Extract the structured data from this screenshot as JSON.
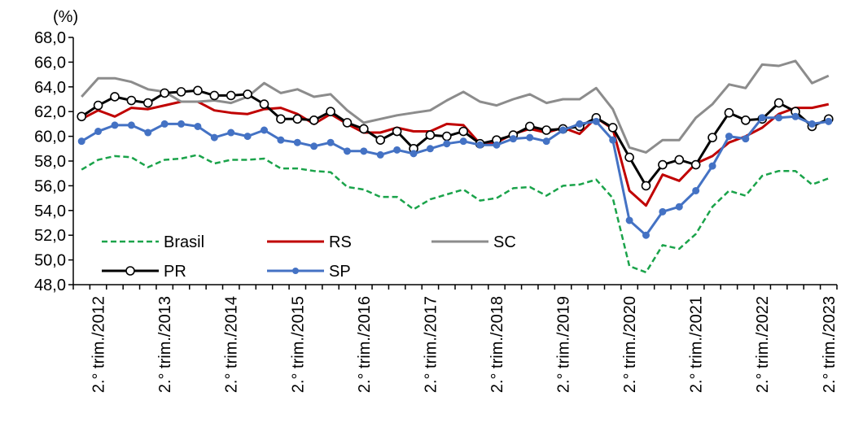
{
  "chart_data": {
    "type": "line",
    "unit_label": "(%)",
    "ylim": [
      48,
      68
    ],
    "y_ticks": [
      "48,0",
      "50,0",
      "52,0",
      "54,0",
      "56,0",
      "58,0",
      "60,0",
      "62,0",
      "64,0",
      "66,0",
      "68,0"
    ],
    "y_tick_values": [
      48,
      50,
      52,
      54,
      56,
      58,
      60,
      62,
      64,
      66,
      68
    ],
    "x_tick_labels": [
      "2.° trim./2012",
      "2.° trim./2013",
      "2.° trim./2014",
      "2.° trim./2015",
      "2.° trim./2016",
      "2.° trim./2017",
      "2.° trim./2018",
      "2.° trim./2019",
      "2.° trim./2020",
      "2.° trim./2021",
      "2.° trim./2022",
      "2.° trim./2023"
    ],
    "x_labeled_quarter_index": [
      1,
      5,
      9,
      13,
      17,
      21,
      25,
      29,
      33,
      37,
      41,
      45
    ],
    "quarters_count": 46,
    "grid": false,
    "legend_placement": "bottom-left, inside plot",
    "series": [
      {
        "name": "Brasil",
        "color": "#1aa34a",
        "style": "dashed",
        "marker": "none",
        "values": [
          57.3,
          58.1,
          58.4,
          58.3,
          57.5,
          58.1,
          58.2,
          58.5,
          57.8,
          58.1,
          58.1,
          58.2,
          57.4,
          57.4,
          57.2,
          57.1,
          55.9,
          55.7,
          55.1,
          55.1,
          54.1,
          54.9,
          55.3,
          55.7,
          54.8,
          55.0,
          55.8,
          55.9,
          55.2,
          56.0,
          56.1,
          56.5,
          55.0,
          49.5,
          49.0,
          51.2,
          50.9,
          52.1,
          54.3,
          55.6,
          55.2,
          56.8,
          57.2,
          57.2,
          56.1,
          56.6
        ]
      },
      {
        "name": "RS",
        "color": "#c00000",
        "style": "solid",
        "marker": "none",
        "values": [
          61.4,
          62.1,
          61.6,
          62.3,
          62.2,
          62.5,
          62.8,
          62.8,
          62.1,
          61.9,
          61.8,
          62.2,
          62.3,
          61.8,
          61.0,
          61.8,
          61.0,
          60.3,
          60.3,
          60.7,
          60.4,
          60.4,
          61.0,
          60.9,
          59.4,
          59.5,
          60.2,
          60.6,
          60.3,
          60.7,
          60.2,
          61.5,
          60.6,
          55.6,
          54.4,
          56.9,
          56.4,
          57.8,
          58.4,
          59.5,
          60.0,
          60.7,
          61.8,
          62.3,
          62.3,
          62.6
        ]
      },
      {
        "name": "SC",
        "color": "#8c8c8c",
        "style": "solid",
        "marker": "none",
        "values": [
          63.2,
          64.7,
          64.7,
          64.4,
          63.8,
          63.6,
          62.8,
          62.8,
          62.9,
          62.7,
          63.2,
          64.3,
          63.5,
          63.8,
          63.2,
          63.4,
          62.1,
          61.1,
          61.4,
          61.7,
          61.9,
          62.1,
          62.9,
          63.6,
          62.8,
          62.5,
          63.0,
          63.4,
          62.7,
          63.0,
          63.0,
          63.9,
          62.2,
          59.1,
          58.7,
          59.7,
          59.7,
          61.5,
          62.6,
          64.2,
          63.9,
          65.8,
          65.7,
          66.1,
          64.3,
          64.9
        ]
      },
      {
        "name": "PR",
        "color": "#000000",
        "style": "solid",
        "marker": "hollow-circle",
        "values": [
          61.6,
          62.5,
          63.2,
          62.9,
          62.7,
          63.5,
          63.6,
          63.7,
          63.3,
          63.3,
          63.4,
          62.6,
          61.4,
          61.4,
          61.3,
          62.0,
          61.1,
          60.6,
          59.7,
          60.4,
          59.0,
          60.1,
          60.0,
          60.4,
          59.4,
          59.7,
          60.1,
          60.8,
          60.5,
          60.6,
          60.8,
          61.5,
          60.7,
          58.3,
          56.0,
          57.7,
          58.1,
          57.7,
          59.9,
          61.9,
          61.3,
          61.4,
          62.7,
          62.0,
          60.8,
          61.4
        ]
      },
      {
        "name": "SP",
        "color": "#4472c4",
        "style": "solid",
        "marker": "filled-circle",
        "values": [
          59.6,
          60.4,
          60.9,
          60.9,
          60.3,
          61.0,
          61.0,
          60.8,
          59.9,
          60.3,
          60.0,
          60.5,
          59.7,
          59.5,
          59.2,
          59.5,
          58.8,
          58.8,
          58.5,
          58.9,
          58.6,
          59.0,
          59.4,
          59.6,
          59.3,
          59.3,
          59.8,
          59.9,
          59.6,
          60.5,
          61.0,
          61.2,
          59.7,
          53.2,
          52.0,
          53.9,
          54.3,
          55.6,
          57.6,
          60.0,
          59.8,
          61.5,
          61.5,
          61.6,
          61.0,
          61.2
        ]
      }
    ]
  }
}
